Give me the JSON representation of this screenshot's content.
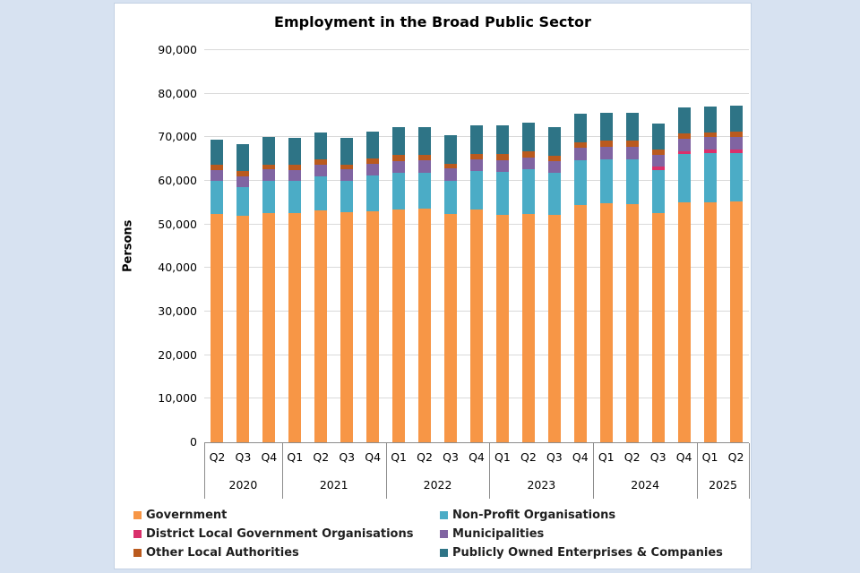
{
  "page": {
    "background_color": "#d7e2f1",
    "panel_background": "#ffffff",
    "grid_color": "#d9d9d9",
    "axis_color": "#8c8c8c",
    "text_color": "#000000"
  },
  "chart_data": {
    "type": "bar",
    "stacked": true,
    "title": "Employment in the Broad Public Sector",
    "ylabel": "Persons",
    "xlabel": "",
    "ylim": [
      0,
      90000
    ],
    "ytick_step": 10000,
    "ytick_labels": [
      "0",
      "10,000",
      "20,000",
      "30,000",
      "40,000",
      "50,000",
      "60,000",
      "70,000",
      "80,000",
      "90,000"
    ],
    "grid": true,
    "legend_position": "bottom",
    "groups": [
      {
        "label": "2020",
        "quarters": [
          "Q2",
          "Q3",
          "Q4"
        ]
      },
      {
        "label": "2021",
        "quarters": [
          "Q1",
          "Q2",
          "Q3",
          "Q4"
        ]
      },
      {
        "label": "2022",
        "quarters": [
          "Q1",
          "Q2",
          "Q3",
          "Q4"
        ]
      },
      {
        "label": "2023",
        "quarters": [
          "Q1",
          "Q2",
          "Q3",
          "Q4"
        ]
      },
      {
        "label": "2024",
        "quarters": [
          "Q1",
          "Q2",
          "Q3",
          "Q4"
        ]
      },
      {
        "label": "2025",
        "quarters": [
          "Q1",
          "Q2"
        ]
      }
    ],
    "series": [
      {
        "name": "Government",
        "color": "#F79646",
        "values": [
          52300,
          52000,
          52700,
          52600,
          53200,
          52800,
          53000,
          53500,
          53700,
          52500,
          53500,
          52200,
          52400,
          52100,
          54400,
          54800,
          54600,
          52700,
          55100,
          55100,
          55200
        ]
      },
      {
        "name": "Non-Profit Organisations",
        "color": "#4BACC6",
        "values": [
          7700,
          6500,
          7300,
          7400,
          7900,
          7300,
          8300,
          8400,
          8200,
          7600,
          8700,
          9800,
          10200,
          9700,
          10400,
          10200,
          10400,
          9800,
          11000,
          11300,
          11200
        ]
      },
      {
        "name": "District Local Government Organisations",
        "color": "#D9306B",
        "values": [
          0,
          0,
          0,
          0,
          0,
          0,
          0,
          0,
          0,
          0,
          0,
          0,
          0,
          0,
          0,
          0,
          0,
          700,
          600,
          700,
          800
        ]
      },
      {
        "name": "Municipalities",
        "color": "#8064A2",
        "values": [
          2500,
          2600,
          2600,
          2500,
          2700,
          2500,
          2700,
          2700,
          2800,
          2700,
          2700,
          2800,
          2800,
          2700,
          2800,
          2900,
          2900,
          2800,
          2900,
          2900,
          2900
        ]
      },
      {
        "name": "Other Local Authorities",
        "color": "#BA5A1E",
        "values": [
          1200,
          1200,
          1200,
          1200,
          1200,
          1100,
          1200,
          1300,
          1200,
          1200,
          1300,
          1300,
          1300,
          1300,
          1300,
          1300,
          1300,
          1200,
          1300,
          1200,
          1200
        ]
      },
      {
        "name": "Publicly Owned Enterprises & Companies",
        "color": "#2E7486",
        "values": [
          5800,
          6200,
          6200,
          6100,
          6200,
          6100,
          6200,
          6400,
          6400,
          6400,
          6500,
          6600,
          6600,
          6500,
          6600,
          6500,
          6500,
          6000,
          5900,
          5800,
          5900
        ]
      }
    ]
  }
}
